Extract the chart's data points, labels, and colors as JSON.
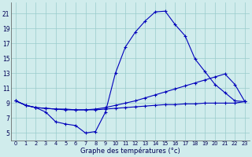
{
  "background_color": "#d0ecec",
  "grid_color": "#99cccc",
  "line_color": "#0000bb",
  "y_ticks": [
    5,
    7,
    9,
    11,
    13,
    15,
    17,
    19,
    21
  ],
  "ylim": [
    4.0,
    22.5
  ],
  "xlim": [
    -0.5,
    23.5
  ],
  "xlabel": "Graphe des températures (°c)",
  "curve1": [
    9.3,
    8.7,
    8.4,
    7.8,
    6.5,
    6.2,
    6.0,
    5.0,
    5.2,
    7.8,
    13.0,
    16.5,
    18.5,
    20.0,
    21.2,
    21.3,
    19.5,
    18.0,
    14.9,
    13.2,
    11.5,
    10.4,
    9.3,
    9.2
  ],
  "curve2": [
    9.3,
    8.7,
    8.4,
    8.3,
    8.2,
    8.2,
    8.1,
    8.1,
    8.2,
    8.4,
    8.7,
    9.0,
    9.3,
    9.7,
    10.1,
    10.5,
    10.9,
    11.3,
    11.7,
    12.1,
    12.5,
    12.9,
    11.5,
    9.2
  ],
  "curve3": [
    9.3,
    8.7,
    8.4,
    8.3,
    8.2,
    8.1,
    8.1,
    8.1,
    8.1,
    8.2,
    8.3,
    8.4,
    8.5,
    8.6,
    8.7,
    8.8,
    8.8,
    8.9,
    8.9,
    9.0,
    9.0,
    9.0,
    9.0,
    9.2
  ]
}
